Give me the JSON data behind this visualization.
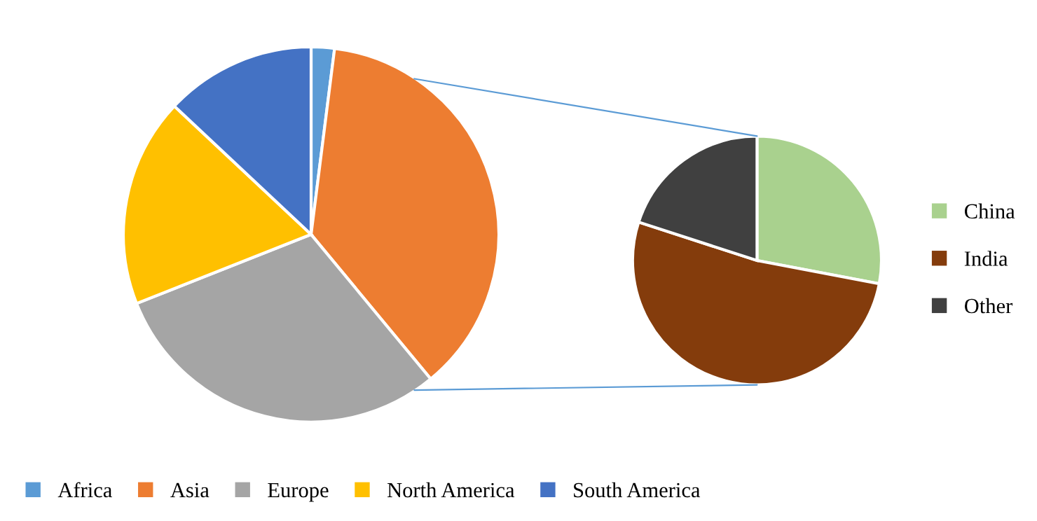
{
  "chart_data": [
    {
      "type": "pie",
      "categories": [
        "Africa",
        "Asia",
        "Europe",
        "North America",
        "South America"
      ],
      "values": [
        2,
        37,
        30,
        18,
        13
      ],
      "colors": [
        "#5b9bd5",
        "#ed7d31",
        "#a5a5a5",
        "#ffc000",
        "#4472c4"
      ],
      "legend": "bottom"
    },
    {
      "type": "pie",
      "categories": [
        "China",
        "India",
        "Other"
      ],
      "values": [
        28,
        52,
        20
      ],
      "colors": [
        "#a9d18e",
        "#843c0c",
        "#404040"
      ],
      "legend": "right"
    }
  ]
}
